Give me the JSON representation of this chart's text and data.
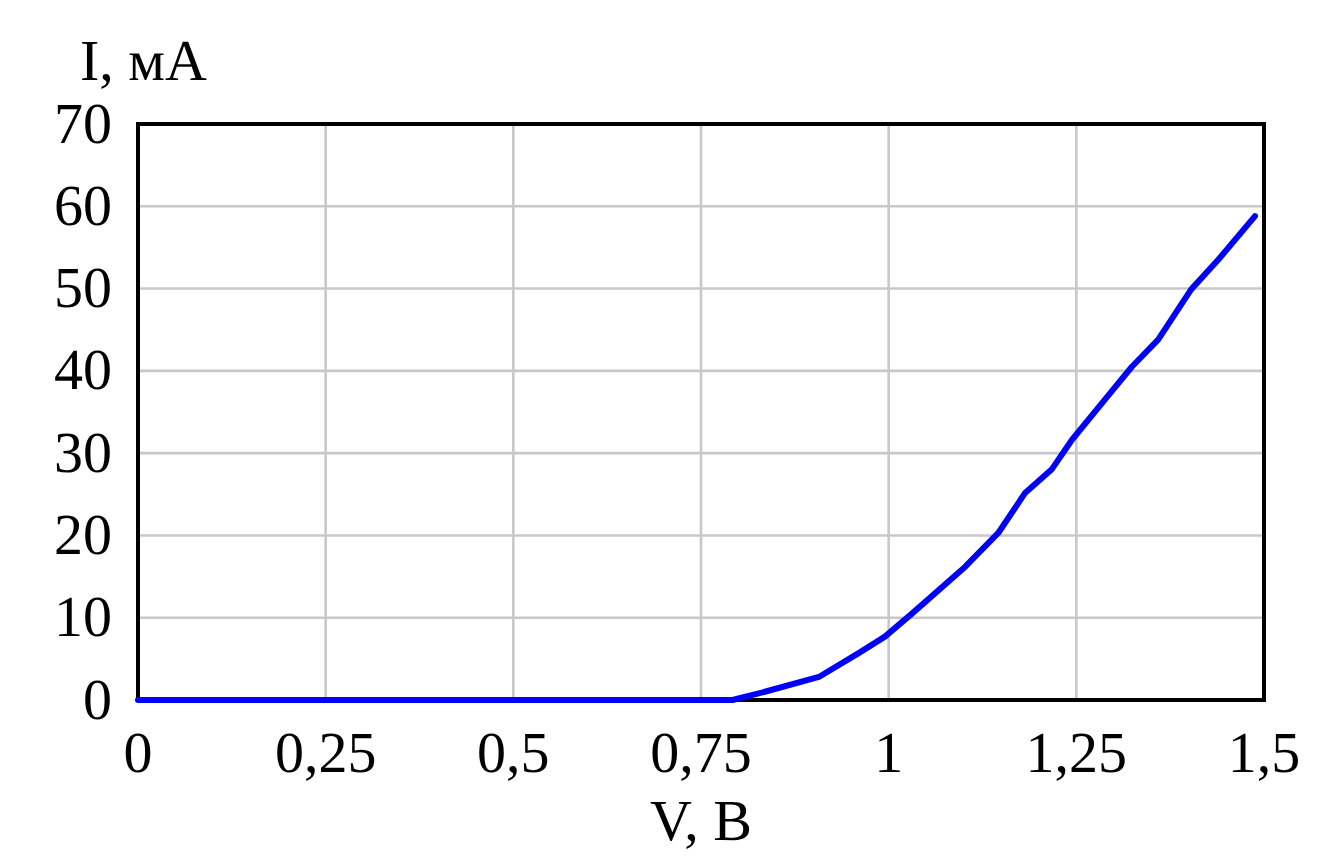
{
  "chart_data": {
    "type": "line",
    "xlabel": "V, В",
    "ylabel": "I, мА",
    "x": [
      0,
      0.25,
      0.5,
      0.75,
      0.792,
      0.835,
      0.907,
      0.96,
      0.995,
      1.031,
      1.102,
      1.146,
      1.182,
      1.217,
      1.244,
      1.288,
      1.324,
      1.359,
      1.403,
      1.439,
      1.488
    ],
    "series": [
      {
        "color": "#0000ff",
        "values": [
          0,
          0,
          0,
          0,
          0,
          1,
          2.8,
          5.7,
          7.7,
          10.5,
          16.2,
          20.3,
          25.2,
          28,
          31.6,
          36.5,
          40.5,
          43.8,
          49.9,
          53.5,
          58.8
        ]
      }
    ],
    "xlim": [
      0,
      1.5
    ],
    "xticks": [
      0,
      {
        "value": 0.25,
        "label": "0,25"
      },
      {
        "value": 0.5,
        "label": "0,5"
      },
      {
        "value": 0.75,
        "label": "0,75"
      },
      1,
      {
        "value": 1.25,
        "label": "1,25"
      },
      {
        "value": 1.5,
        "label": "1,5"
      }
    ],
    "ylim": [
      0,
      70
    ],
    "yticks": [
      0,
      10,
      20,
      30,
      40,
      50,
      60,
      70
    ],
    "grid": true,
    "marker": "none",
    "line_style": "solid"
  }
}
